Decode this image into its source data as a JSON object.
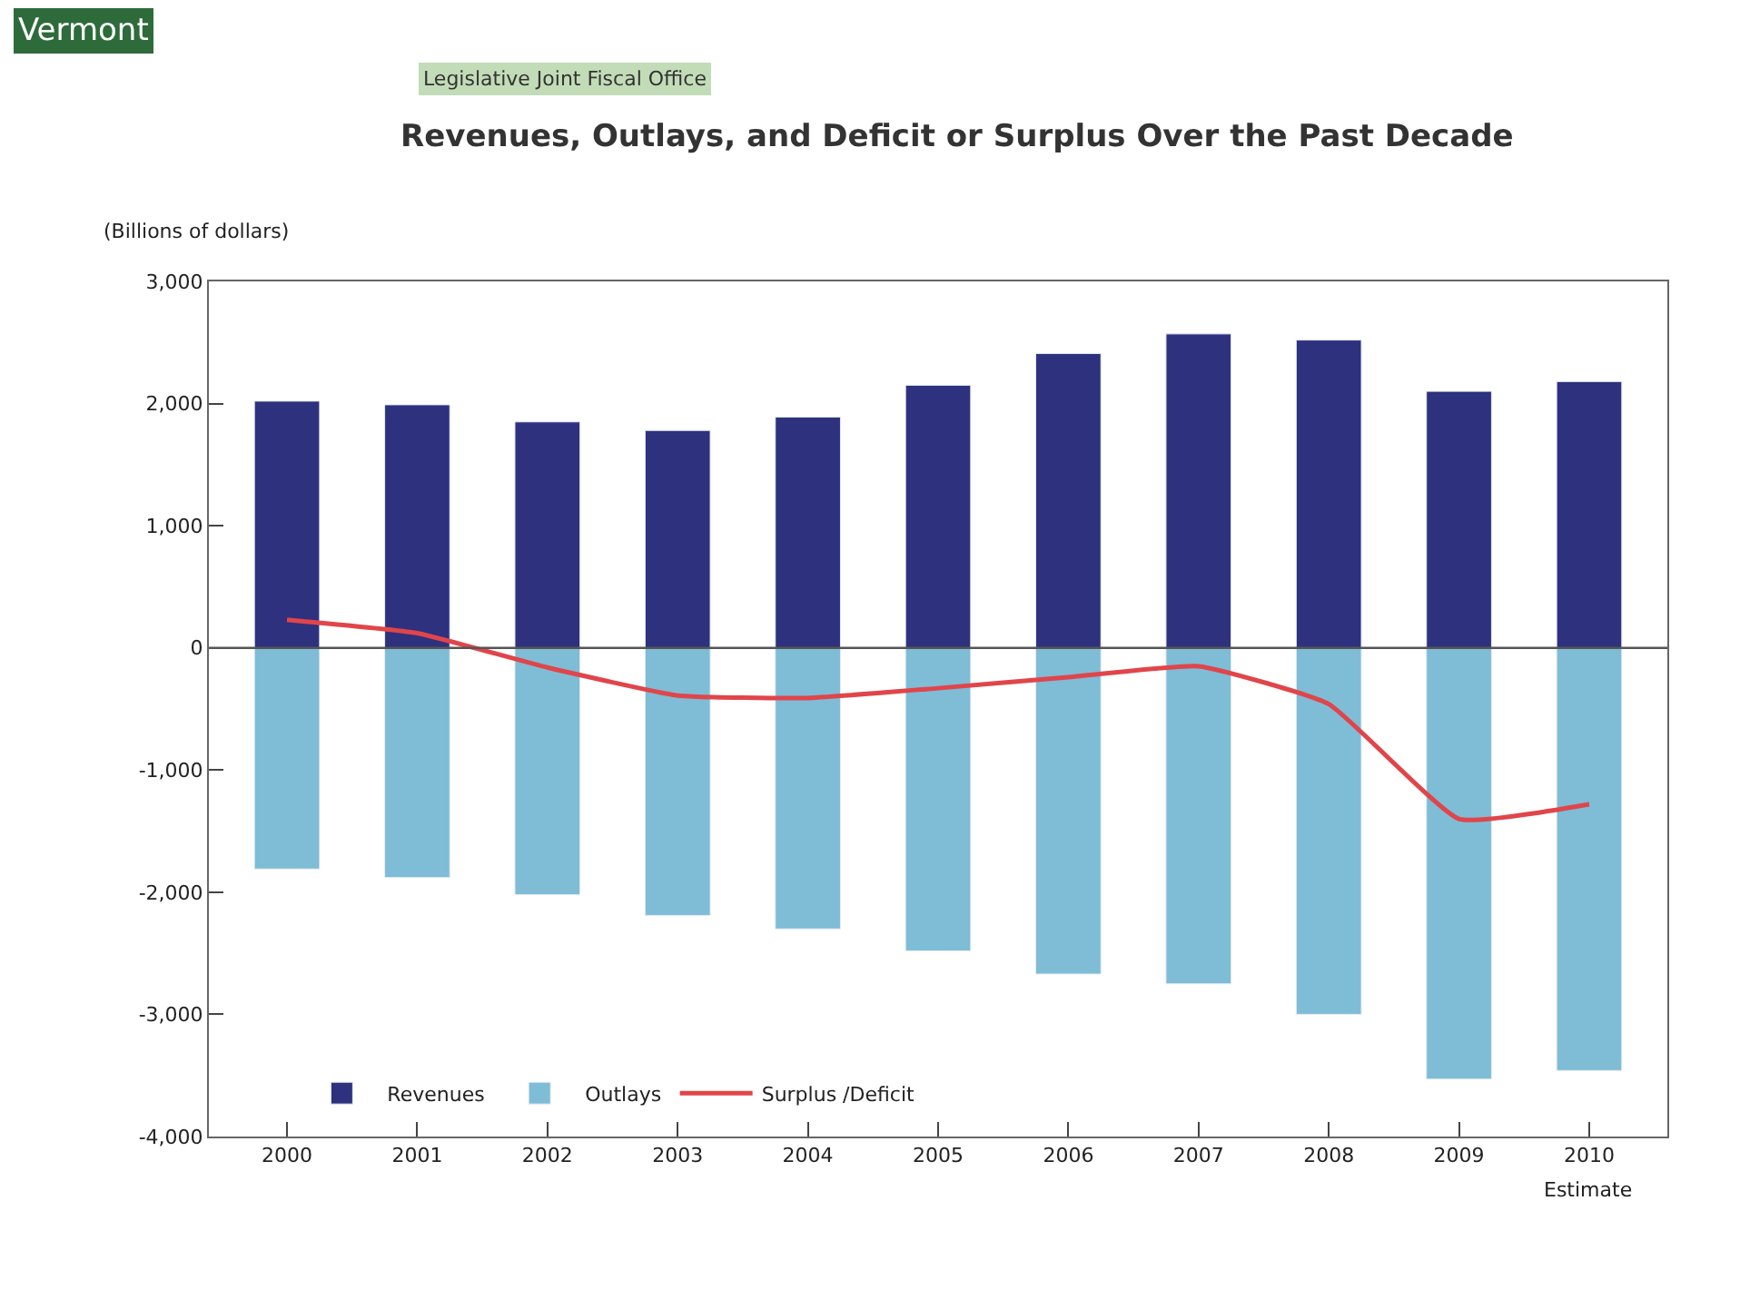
{
  "chart_data": {
    "type": "bar",
    "title": "Revenues, Outlays, and Deficit or Surplus Over the Past Decade",
    "ylabel": "(Billions of dollars)",
    "annotations": [
      "Vermont",
      "Legislative Joint Fiscal Office",
      "Estimate"
    ],
    "categories": [
      "2000",
      "2001",
      "2002",
      "2003",
      "2004",
      "2005",
      "2006",
      "2007",
      "2008",
      "2009",
      "2010"
    ],
    "stacked": true,
    "series": [
      {
        "name": "Revenues",
        "color": "#2e317e",
        "values": [
          2020,
          1990,
          1850,
          1780,
          1890,
          2150,
          2410,
          2570,
          2520,
          2100,
          2180
        ]
      },
      {
        "name": "Outlays",
        "color": "#7fbcd6",
        "values": [
          -1810,
          -1880,
          -2020,
          -2190,
          -2300,
          -2480,
          -2670,
          -2750,
          -3000,
          -3530,
          -3460
        ]
      },
      {
        "name": "Surplus /Deficit",
        "type": "line",
        "color": "#e0454a",
        "values": [
          230,
          120,
          -160,
          -390,
          -410,
          -330,
          -240,
          -150,
          -460,
          -1400,
          -1280
        ]
      }
    ],
    "ylim": [
      -4000,
      3000
    ],
    "yticks": [
      {
        "value": 3000,
        "label": "3,000"
      },
      {
        "value": 2000,
        "label": "2,000"
      },
      {
        "value": 1000,
        "label": "1,000"
      },
      0,
      {
        "value": -1000,
        "label": "-1,000"
      },
      {
        "value": -2000,
        "label": "-2,000"
      },
      {
        "value": -3000,
        "label": "-3,000"
      },
      {
        "value": -4000,
        "label": "-4,000"
      }
    ],
    "ref_lines": [
      {
        "axis": "y",
        "value": 0,
        "color": "#555555"
      }
    ],
    "legend": "bottom",
    "marker": "none",
    "line_style": "solid"
  }
}
